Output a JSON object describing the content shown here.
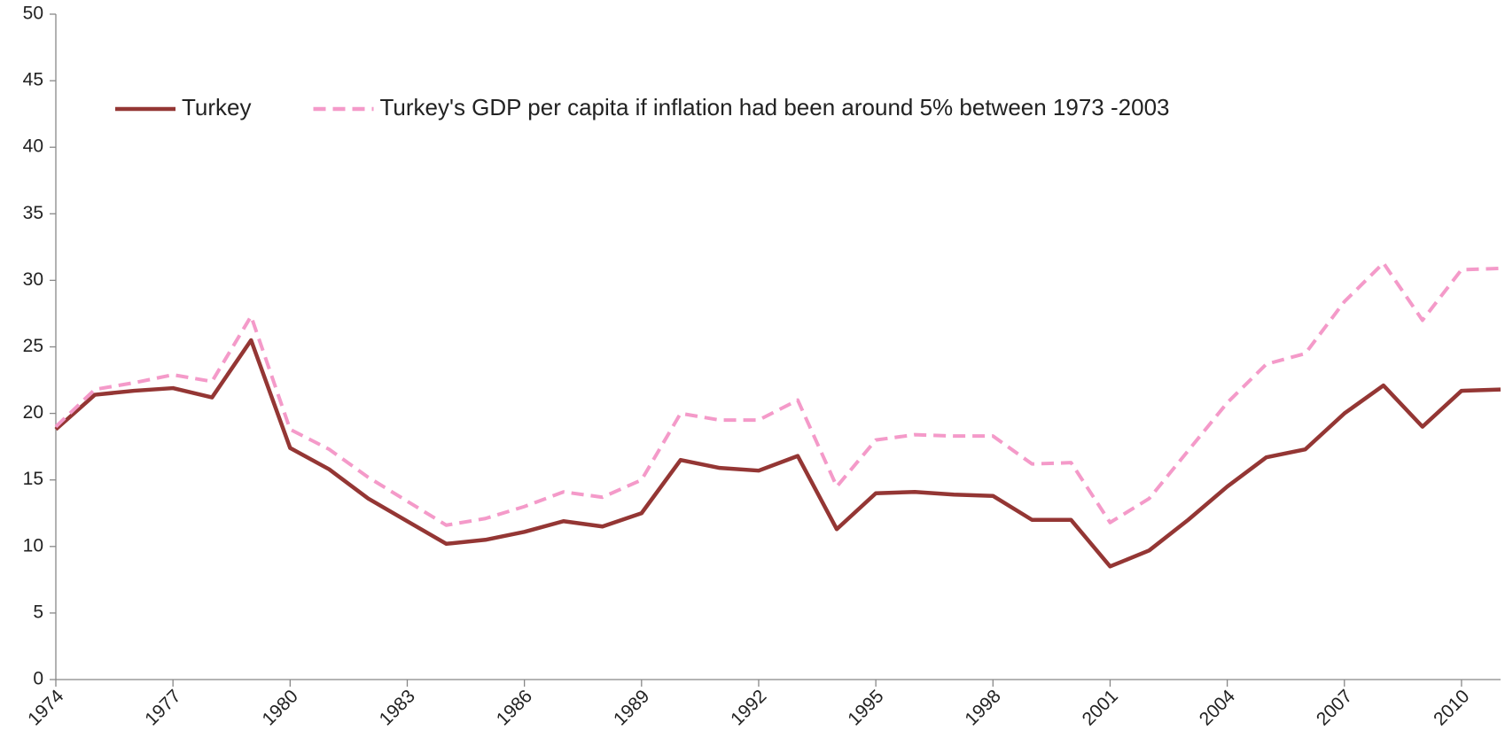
{
  "chart_data": {
    "type": "line",
    "x": [
      1974,
      1975,
      1976,
      1977,
      1978,
      1979,
      1980,
      1981,
      1982,
      1983,
      1984,
      1985,
      1986,
      1987,
      1988,
      1989,
      1990,
      1991,
      1992,
      1993,
      1994,
      1995,
      1996,
      1997,
      1998,
      1999,
      2000,
      2001,
      2002,
      2003,
      2004,
      2005,
      2006,
      2007,
      2008,
      2009,
      2010,
      2011
    ],
    "series": [
      {
        "name": "Turkey",
        "color": "#943634",
        "dash": false,
        "values": [
          18.8,
          21.4,
          21.7,
          21.9,
          21.2,
          25.5,
          17.4,
          15.8,
          13.6,
          11.9,
          10.2,
          10.5,
          11.1,
          11.9,
          11.5,
          12.5,
          16.5,
          15.9,
          15.7,
          16.8,
          11.3,
          14.0,
          14.1,
          13.9,
          13.8,
          12.0,
          12.0,
          8.5,
          9.7,
          12.0,
          14.5,
          16.7,
          17.3,
          20.0,
          22.1,
          19.0,
          21.7,
          21.8
        ]
      },
      {
        "name": "Turkey's GDP per capita if inflation had been around 5% between 1973 -2003",
        "color": "#f49ac9",
        "dash": true,
        "values": [
          19.0,
          21.8,
          22.3,
          22.9,
          22.4,
          27.3,
          18.8,
          17.3,
          15.2,
          13.4,
          11.6,
          12.1,
          13.0,
          14.1,
          13.7,
          15.0,
          20.0,
          19.5,
          19.5,
          21.0,
          14.5,
          18.0,
          18.4,
          18.3,
          18.3,
          16.2,
          16.3,
          11.8,
          13.6,
          17.2,
          20.8,
          23.7,
          24.5,
          28.4,
          31.3,
          27.0,
          30.8,
          30.9
        ]
      }
    ],
    "xlim": [
      1974,
      2011
    ],
    "xticks": [
      1974,
      1977,
      1980,
      1983,
      1986,
      1989,
      1992,
      1995,
      1998,
      2001,
      2004,
      2007,
      2010
    ],
    "ylim": [
      0,
      50
    ],
    "yticks": [
      0,
      5,
      10,
      15,
      20,
      25,
      30,
      35,
      40,
      45,
      50
    ],
    "grid": false,
    "legend": "top-left"
  }
}
